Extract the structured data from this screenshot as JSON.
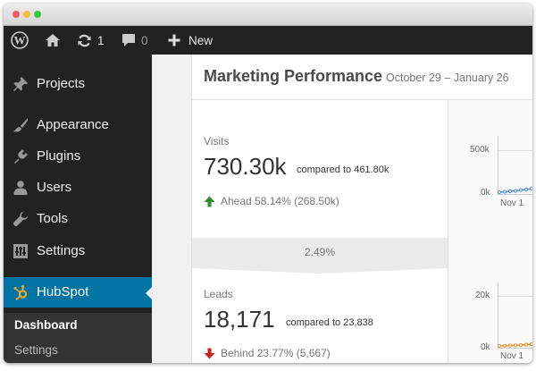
{
  "adminbar": {
    "updates_count": "1",
    "comments_count": "0",
    "new_label": "New"
  },
  "sidebar": {
    "items": [
      {
        "label": "Projects",
        "icon": "pin-icon"
      },
      {
        "label": "Appearance",
        "icon": "paintbrush-icon"
      },
      {
        "label": "Plugins",
        "icon": "plug-icon"
      },
      {
        "label": "Users",
        "icon": "user-icon"
      },
      {
        "label": "Tools",
        "icon": "wrench-icon"
      },
      {
        "label": "Settings",
        "icon": "settings-icon"
      },
      {
        "label": "HubSpot",
        "icon": "hubspot-icon",
        "active": true
      }
    ],
    "submenu": {
      "current": "Dashboard",
      "other": "Settings"
    }
  },
  "panel": {
    "title": "Marketing Performance",
    "range": "October 29 – January 26",
    "visits": {
      "label": "Visits",
      "value": "730.30k",
      "compare": "compared to 461.80k",
      "delta": "Ahead 58.14% (268.50k)",
      "direction": "up"
    },
    "conversion_rate": "2.49%",
    "leads": {
      "label": "Leads",
      "value": "18,171",
      "compare": "compared to 23,838",
      "delta": "Behind 23.77% (5,667)",
      "direction": "down"
    }
  },
  "chart_data": [
    {
      "type": "line",
      "x": [
        "Nov 1"
      ],
      "yticks": [
        "500k",
        "0k"
      ],
      "series": []
    },
    {
      "type": "line",
      "x": [
        "Nov 1"
      ],
      "yticks": [
        "20k",
        "0k"
      ],
      "series": []
    }
  ],
  "colors": {
    "accent": "#0074a2",
    "admin_bg": "#222222",
    "up": "#2a8f2a",
    "down": "#cc2222",
    "visits_line": "#4a90d9",
    "leads_line": "#f08a24"
  }
}
